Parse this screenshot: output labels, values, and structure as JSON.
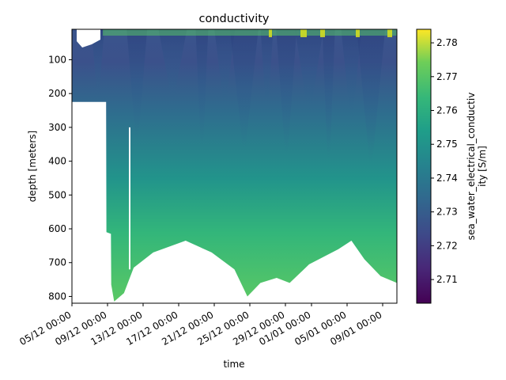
{
  "chart_data": {
    "type": "heatmap",
    "title": "conductivity",
    "xlabel": "time",
    "ylabel": "depth [meters]",
    "colorbar_label": "sea_water_electrical_conductiv\nity [S/m]",
    "x_ticks": [
      "05/12 00:00",
      "09/12 00:00",
      "13/12 00:00",
      "17/12 00:00",
      "21/12 00:00",
      "25/12 00:00",
      "29/12 00:00",
      "01/01 00:00",
      "05/01 00:00",
      "09/01 00:00"
    ],
    "y_ticks": [
      100,
      200,
      300,
      400,
      500,
      600,
      700,
      800
    ],
    "ylim": [
      820,
      0
    ],
    "colorbar_ticks": [
      2.71,
      2.72,
      2.73,
      2.74,
      2.75,
      2.76,
      2.77,
      2.78
    ],
    "colorbar_range": [
      2.703,
      2.784
    ],
    "colormap": "viridis",
    "max_depth_profile": [
      {
        "x": 0.0,
        "depth": 225
      },
      {
        "x": 0.105,
        "depth": 225
      },
      {
        "x": 0.106,
        "depth": 610
      },
      {
        "x": 0.12,
        "depth": 615
      },
      {
        "x": 0.121,
        "depth": 765
      },
      {
        "x": 0.13,
        "depth": 815
      },
      {
        "x": 0.16,
        "depth": 790
      },
      {
        "x": 0.19,
        "depth": 715
      },
      {
        "x": 0.25,
        "depth": 670
      },
      {
        "x": 0.35,
        "depth": 635
      },
      {
        "x": 0.43,
        "depth": 670
      },
      {
        "x": 0.5,
        "depth": 720
      },
      {
        "x": 0.54,
        "depth": 800
      },
      {
        "x": 0.58,
        "depth": 760
      },
      {
        "x": 0.63,
        "depth": 745
      },
      {
        "x": 0.67,
        "depth": 760
      },
      {
        "x": 0.73,
        "depth": 705
      },
      {
        "x": 0.82,
        "depth": 660
      },
      {
        "x": 0.86,
        "depth": 635
      },
      {
        "x": 0.9,
        "depth": 690
      },
      {
        "x": 0.95,
        "depth": 740
      },
      {
        "x": 1.0,
        "depth": 760
      }
    ]
  }
}
